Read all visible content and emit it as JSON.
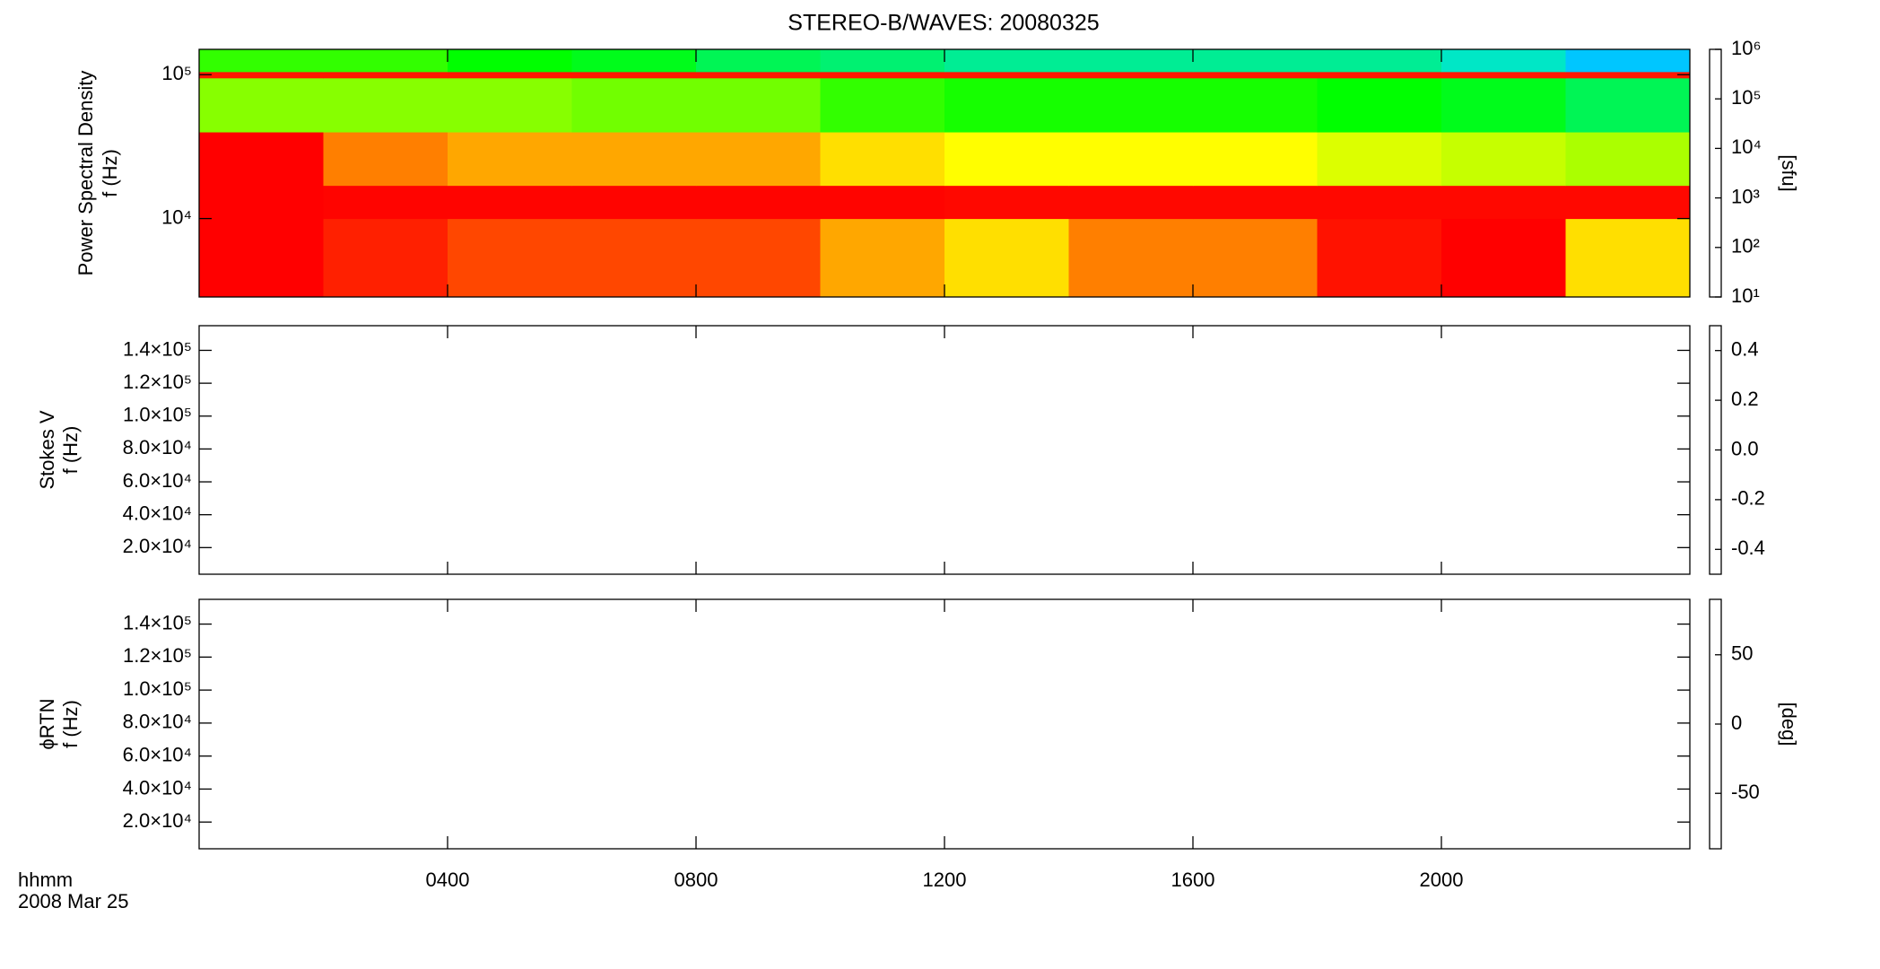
{
  "title": "STEREO-B/WAVES: 20080325",
  "x_label": "hhmm",
  "date_label": "2008 Mar 25",
  "xlim": [
    0,
    24
  ],
  "xticks": [
    {
      "value": 4,
      "label": "0400"
    },
    {
      "value": 8,
      "label": "0800"
    },
    {
      "value": 12,
      "label": "1200"
    },
    {
      "value": 16,
      "label": "1600"
    },
    {
      "value": 20,
      "label": "2000"
    }
  ],
  "chart_data": [
    {
      "type": "heatmap",
      "y_label": [
        "Power Spectral Density",
        "f (Hz)"
      ],
      "ylog": true,
      "ylim": [
        2850,
        150000
      ],
      "yticks": [
        {
          "value": 10000,
          "label": "10⁴"
        },
        {
          "value": 100000,
          "label": "10⁵"
        }
      ],
      "colormap": "rainbow",
      "zlog": true,
      "zlim": [
        10,
        1000000
      ],
      "z_label": "[sfu]",
      "zticks": [
        {
          "value": 10,
          "label": "10¹"
        },
        {
          "value": 100,
          "label": "10²"
        },
        {
          "value": 1000,
          "label": "10³"
        },
        {
          "value": 10000,
          "label": "10⁴"
        },
        {
          "value": 100000,
          "label": "10⁵"
        },
        {
          "value": 1000000,
          "label": "10⁶"
        }
      ],
      "x_bins": [
        0,
        2,
        4,
        6,
        8,
        10,
        12,
        14,
        16,
        18,
        20,
        22,
        24
      ],
      "y_bins": [
        2850,
        10000,
        17000,
        40000,
        95000,
        105000,
        150000
      ],
      "z": [
        [
          1000000,
          400000,
          300000,
          300000,
          300000,
          150000,
          100000,
          200000,
          200000,
          600000,
          1000000,
          100000
        ],
        [
          1000000,
          900000,
          900000,
          900000,
          900000,
          900000,
          800000,
          800000,
          800000,
          800000,
          800000,
          800000
        ],
        [
          1000000,
          200000,
          150000,
          150000,
          150000,
          100000,
          80000,
          80000,
          80000,
          60000,
          50000,
          40000
        ],
        [
          30000,
          30000,
          30000,
          25000,
          25000,
          15000,
          12000,
          12000,
          12000,
          10000,
          8000,
          5000
        ],
        [
          500000,
          500000,
          500000,
          500000,
          500000,
          500000,
          500000,
          500000,
          500000,
          500000,
          500000,
          500000
        ],
        [
          15000,
          15000,
          10000,
          8000,
          5000,
          4000,
          3000,
          3000,
          3000,
          3000,
          2000,
          1000
        ]
      ]
    },
    {
      "type": "heatmap",
      "y_label": [
        "Stokes V",
        "f (Hz)"
      ],
      "ylog": false,
      "ylim": [
        3800,
        155000
      ],
      "yticks": [
        {
          "value": 20000,
          "label": "2.0×10⁴"
        },
        {
          "value": 40000,
          "label": "4.0×10⁴"
        },
        {
          "value": 60000,
          "label": "6.0×10⁴"
        },
        {
          "value": 80000,
          "label": "8.0×10⁴"
        },
        {
          "value": 100000,
          "label": "1.0×10⁵"
        },
        {
          "value": 120000,
          "label": "1.2×10⁵"
        },
        {
          "value": 140000,
          "label": "1.4×10⁵"
        }
      ],
      "colormap": "rainbow",
      "zlog": false,
      "zlim": [
        -0.5,
        0.5
      ],
      "zticks": [
        -0.4,
        -0.2,
        {
          "value": 0,
          "label": "0.0"
        },
        0.2,
        0.4
      ]
    },
    {
      "type": "heatmap",
      "y_label": [
        "ϕRTN",
        "f (Hz)"
      ],
      "ylog": false,
      "ylim": [
        3800,
        155000
      ],
      "yticks": [
        {
          "value": 20000,
          "label": "2.0×10⁴"
        },
        {
          "value": 40000,
          "label": "4.0×10⁴"
        },
        {
          "value": 60000,
          "label": "6.0×10⁴"
        },
        {
          "value": 80000,
          "label": "8.0×10⁴"
        },
        {
          "value": 100000,
          "label": "1.0×10⁵"
        },
        {
          "value": 120000,
          "label": "1.2×10⁵"
        },
        {
          "value": 140000,
          "label": "1.4×10⁵"
        }
      ],
      "colormap": "rainbow",
      "zlog": false,
      "zlim": [
        -90,
        90
      ],
      "z_label": "[deg]",
      "zticks": [
        -50,
        0,
        50
      ]
    }
  ]
}
